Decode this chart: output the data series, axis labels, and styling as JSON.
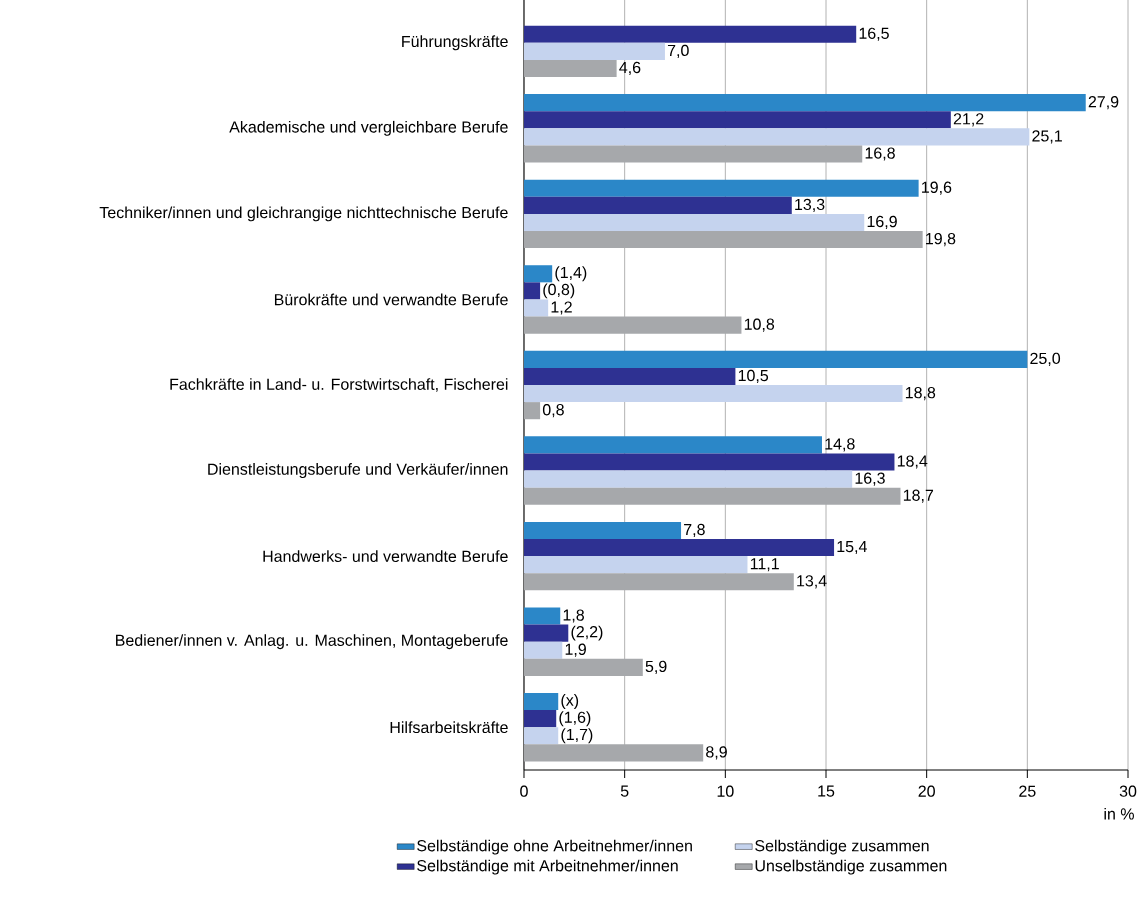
{
  "chart_data": {
    "type": "bar",
    "orientation": "horizontal",
    "categories": [
      "Führungskräfte",
      "Akademische und vergleichbare Berufe",
      "Techniker/innen und gleichrangige nichttechnische Berufe",
      "Bürokräfte und verwandte Berufe",
      "Fachkräfte in Land- u. Forstwirtschaft, Fischerei",
      "Dienstleistungsberufe und Verkäufer/innen",
      "Handwerks- und verwandte Berufe",
      "Bediener/innen v. Anlag. u. Maschinen, Montageberufe",
      "Hilfsarbeitskräfte"
    ],
    "series": [
      {
        "name": "Selbständige ohne Arbeitnehmer/innen",
        "color": "#2b87c8",
        "values": [
          null,
          27.9,
          19.6,
          1.4,
          25.0,
          14.8,
          7.8,
          1.8,
          1.7
        ],
        "value_labels": [
          null,
          "27,9",
          "19,6",
          "(1,4)",
          "25,0",
          "14,8",
          "7,8",
          "1,8",
          "(x)"
        ]
      },
      {
        "name": "Selbständige mit Arbeitnehmer/innen",
        "color": "#2e3192",
        "values": [
          16.5,
          21.2,
          13.3,
          0.8,
          10.5,
          18.4,
          15.4,
          2.2,
          1.6
        ],
        "value_labels": [
          "16,5",
          "21,2",
          "13,3",
          "(0,8)",
          "10,5",
          "18,4",
          "15,4",
          "(2,2)",
          "(1,6)"
        ]
      },
      {
        "name": "Selbständige zusammen",
        "color": "#c5d3ee",
        "values": [
          7.0,
          25.1,
          16.9,
          1.2,
          18.8,
          16.3,
          11.1,
          1.9,
          1.7
        ],
        "value_labels": [
          "7,0",
          "25,1",
          "16,9",
          "1,2",
          "18,8",
          "16,3",
          "11,1",
          "1,9",
          "(1,7)"
        ]
      },
      {
        "name": "Unselbständige zusammen",
        "color": "#a6a8ab",
        "values": [
          4.6,
          16.8,
          19.8,
          10.8,
          0.8,
          18.7,
          13.4,
          5.9,
          8.9
        ],
        "value_labels": [
          "4,6",
          "16,8",
          "19,8",
          "10,8",
          "0,8",
          "18,7",
          "13,4",
          "5,9",
          "8,9"
        ]
      }
    ],
    "xlim": [
      0,
      30
    ],
    "xticks": [
      0,
      5,
      10,
      15,
      20,
      25,
      30
    ],
    "xlabel": "in %",
    "grid": "x",
    "legend": "bottom"
  }
}
